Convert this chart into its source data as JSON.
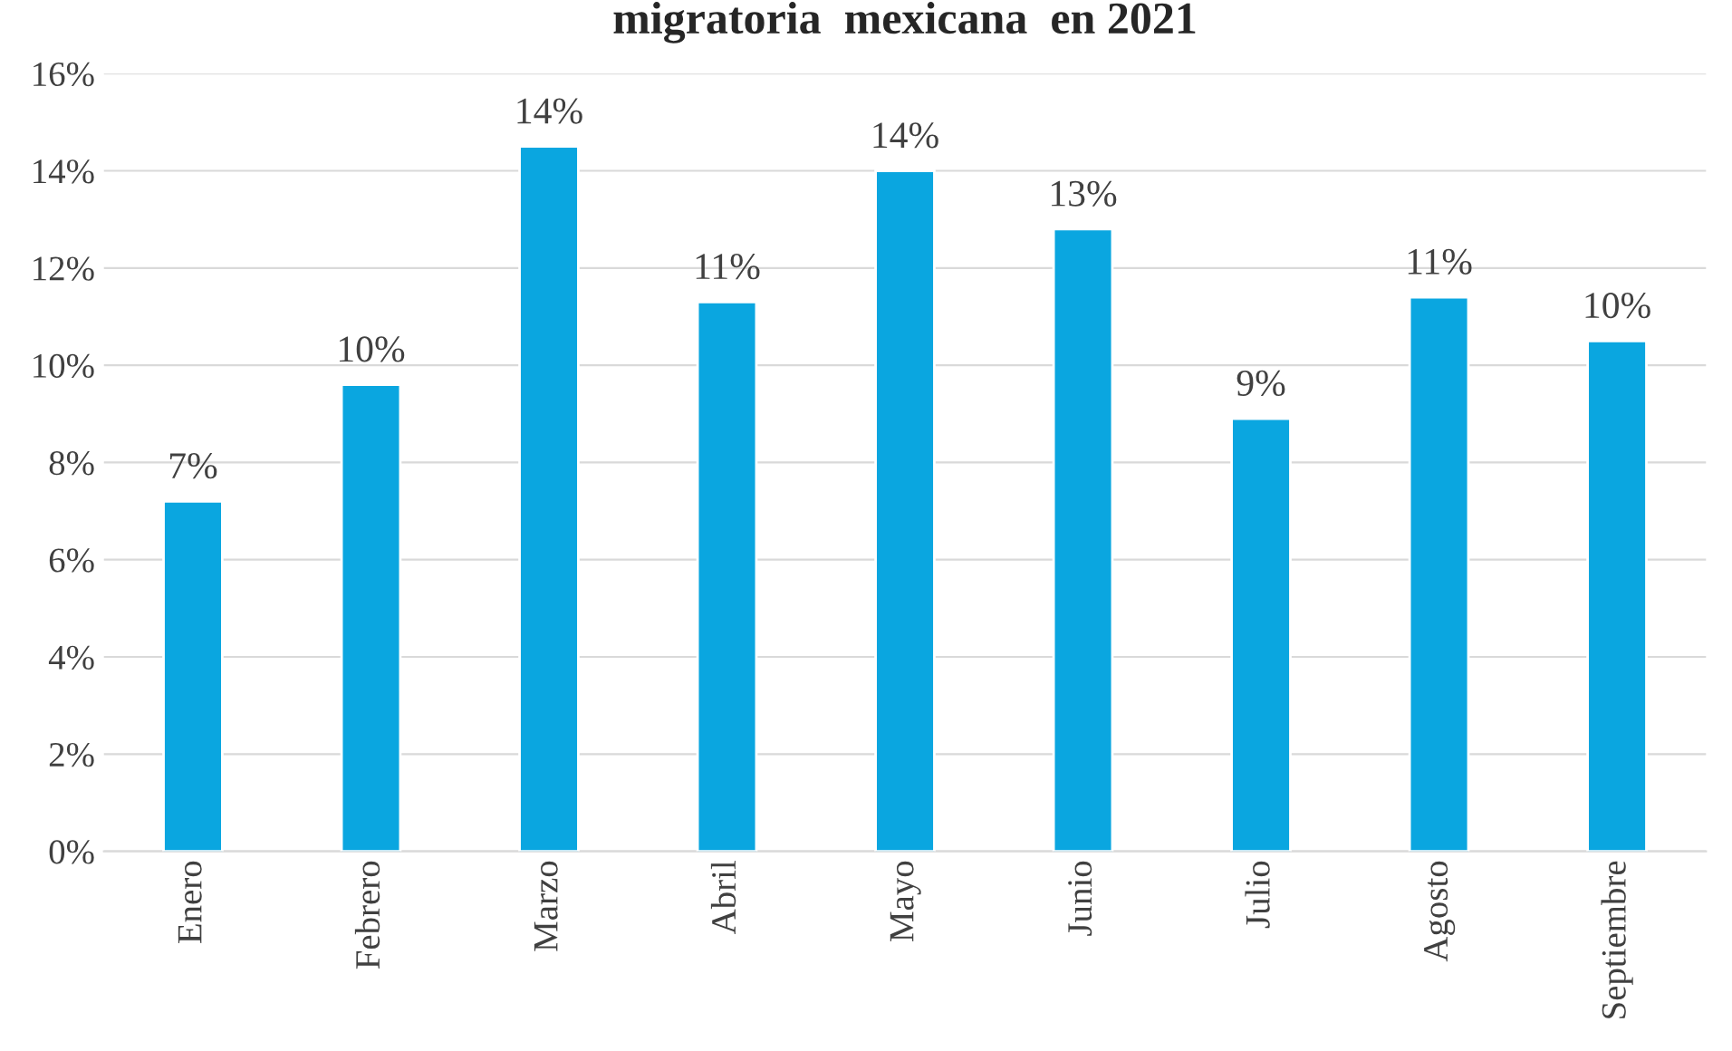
{
  "chart_data": {
    "type": "bar",
    "title": "migratoria  mexicana  en 2021",
    "categories": [
      "Enero",
      "Febrero",
      "Marzo",
      "Abril",
      "Mayo",
      "Junio",
      "Julio",
      "Agosto",
      "Septiembre"
    ],
    "values": [
      7.2,
      9.6,
      14.5,
      11.3,
      14.0,
      12.8,
      8.9,
      11.4,
      10.5
    ],
    "value_labels": [
      "7%",
      "10%",
      "14%",
      "11%",
      "14%",
      "13%",
      "9%",
      "11%",
      "10%"
    ],
    "color": "#0aa6e0",
    "ylim": [
      0,
      16
    ],
    "yticks": [
      {
        "value": 0,
        "label": "0%"
      },
      {
        "value": 2,
        "label": "2%"
      },
      {
        "value": 4,
        "label": "4%"
      },
      {
        "value": 6,
        "label": "6%"
      },
      {
        "value": 8,
        "label": "8%"
      },
      {
        "value": 10,
        "label": "10%"
      },
      {
        "value": 12,
        "label": "12%"
      },
      {
        "value": 14,
        "label": "14%"
      },
      {
        "value": 16,
        "label": "16%"
      }
    ],
    "grid": "y"
  }
}
